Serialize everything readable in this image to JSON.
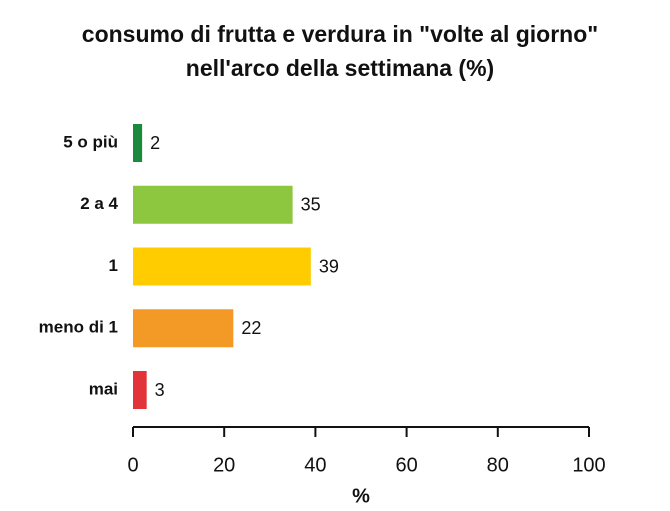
{
  "chart_data": {
    "type": "bar",
    "orientation": "horizontal",
    "title": [
      "consumo di frutta e verdura in \"volte al giorno\"",
      "nell'arco della settimana  (%)"
    ],
    "categories": [
      "5 o più",
      "2 a 4",
      "1",
      "meno di 1",
      "mai"
    ],
    "values": [
      2,
      35,
      39,
      22,
      3
    ],
    "colors": [
      "#1b8a3e",
      "#8dc63f",
      "#ffcc00",
      "#f39a26",
      "#e2323a"
    ],
    "xlabel": "%",
    "xlim": [
      0,
      100
    ],
    "xticks": [
      0,
      20,
      40,
      60,
      80,
      100
    ],
    "grid": false
  }
}
